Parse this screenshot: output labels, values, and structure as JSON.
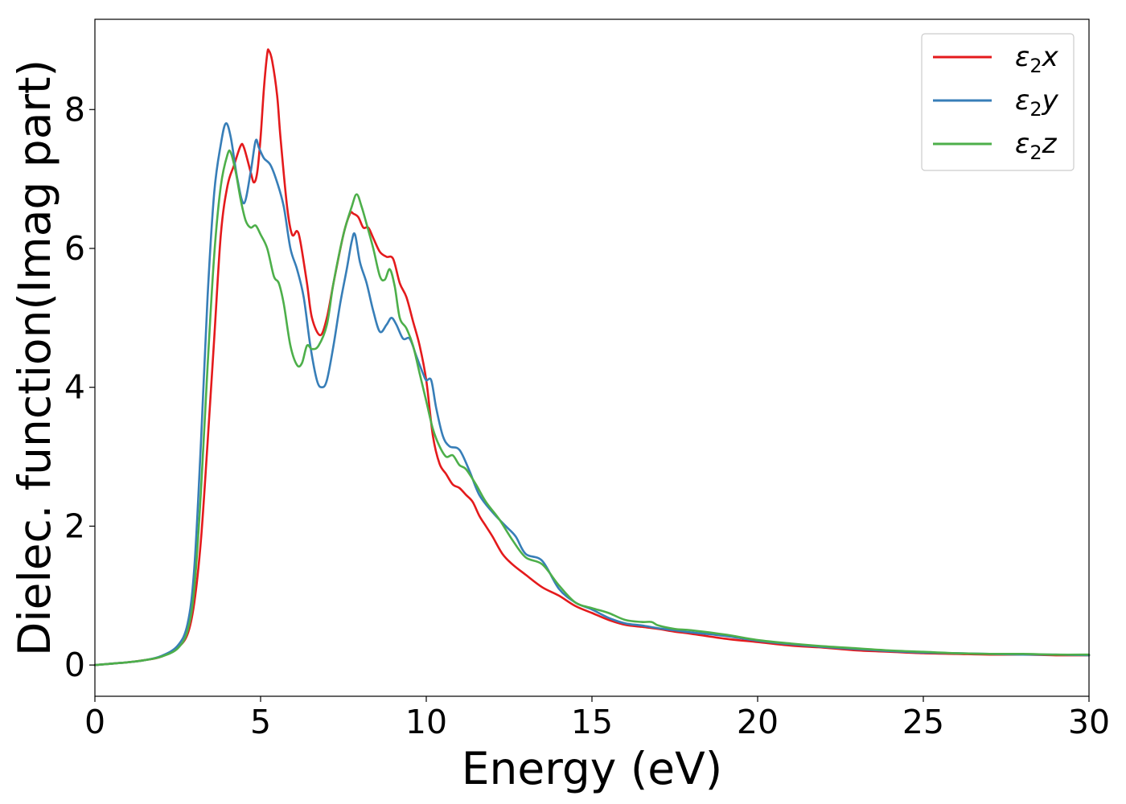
{
  "chart_data": {
    "type": "line",
    "title": "",
    "xlabel": "Energy (eV)",
    "ylabel": "Dielec. function(Imag part)",
    "xlim": [
      0,
      30
    ],
    "ylim": [
      -0.45,
      9.3
    ],
    "xticks": [
      0,
      5,
      10,
      15,
      20,
      25,
      30
    ],
    "xtick_labels": [
      "0",
      "5",
      "10",
      "15",
      "20",
      "25",
      "30"
    ],
    "yticks": [
      0,
      2,
      4,
      6,
      8
    ],
    "ytick_labels": [
      "0",
      "2",
      "4",
      "6",
      "8"
    ],
    "grid": false,
    "legend_position": "top-right",
    "series": [
      {
        "name": "ε2x",
        "legend_main": "ε",
        "legend_sub": "2",
        "legend_tail": "x",
        "color": "#e41a1c",
        "points": [
          [
            0,
            0
          ],
          [
            1,
            0.04
          ],
          [
            1.5,
            0.07
          ],
          [
            2,
            0.12
          ],
          [
            2.5,
            0.25
          ],
          [
            2.8,
            0.45
          ],
          [
            3,
            0.9
          ],
          [
            3.2,
            1.8
          ],
          [
            3.4,
            3.2
          ],
          [
            3.6,
            4.7
          ],
          [
            3.8,
            6.2
          ],
          [
            4,
            6.9
          ],
          [
            4.2,
            7.2
          ],
          [
            4.4,
            7.48
          ],
          [
            4.5,
            7.45
          ],
          [
            4.7,
            7.1
          ],
          [
            4.8,
            6.95
          ],
          [
            4.9,
            7.1
          ],
          [
            5,
            7.6
          ],
          [
            5.1,
            8.3
          ],
          [
            5.2,
            8.8
          ],
          [
            5.25,
            8.85
          ],
          [
            5.35,
            8.7
          ],
          [
            5.5,
            8.2
          ],
          [
            5.6,
            7.6
          ],
          [
            5.8,
            6.6
          ],
          [
            5.95,
            6.2
          ],
          [
            6.1,
            6.25
          ],
          [
            6.2,
            6.1
          ],
          [
            6.4,
            5.5
          ],
          [
            6.55,
            5
          ],
          [
            6.8,
            4.75
          ],
          [
            7,
            5
          ],
          [
            7.2,
            5.5
          ],
          [
            7.5,
            6.2
          ],
          [
            7.7,
            6.5
          ],
          [
            7.8,
            6.5
          ],
          [
            7.95,
            6.45
          ],
          [
            8.1,
            6.3
          ],
          [
            8.25,
            6.3
          ],
          [
            8.4,
            6.15
          ],
          [
            8.6,
            5.95
          ],
          [
            8.8,
            5.88
          ],
          [
            9,
            5.85
          ],
          [
            9.2,
            5.5
          ],
          [
            9.4,
            5.3
          ],
          [
            9.6,
            4.95
          ],
          [
            9.8,
            4.6
          ],
          [
            10,
            4.1
          ],
          [
            10.2,
            3.3
          ],
          [
            10.4,
            2.9
          ],
          [
            10.6,
            2.75
          ],
          [
            10.8,
            2.6
          ],
          [
            11,
            2.55
          ],
          [
            11.2,
            2.45
          ],
          [
            11.4,
            2.35
          ],
          [
            11.6,
            2.15
          ],
          [
            11.8,
            2
          ],
          [
            12,
            1.85
          ],
          [
            12.3,
            1.6
          ],
          [
            12.6,
            1.45
          ],
          [
            13,
            1.3
          ],
          [
            13.5,
            1.12
          ],
          [
            14,
            1
          ],
          [
            14.5,
            0.85
          ],
          [
            15,
            0.75
          ],
          [
            15.5,
            0.65
          ],
          [
            16,
            0.58
          ],
          [
            16.5,
            0.55
          ],
          [
            17,
            0.52
          ],
          [
            17.5,
            0.48
          ],
          [
            18,
            0.45
          ],
          [
            19,
            0.38
          ],
          [
            20,
            0.33
          ],
          [
            21,
            0.28
          ],
          [
            22,
            0.25
          ],
          [
            23,
            0.21
          ],
          [
            24,
            0.19
          ],
          [
            25,
            0.17
          ],
          [
            26,
            0.16
          ],
          [
            27,
            0.15
          ],
          [
            28,
            0.15
          ],
          [
            29,
            0.14
          ],
          [
            30,
            0.14
          ]
        ]
      },
      {
        "name": "ε2y",
        "legend_main": "ε",
        "legend_sub": "2",
        "legend_tail": "y",
        "color": "#377eb8",
        "points": [
          [
            0,
            0
          ],
          [
            1,
            0.04
          ],
          [
            1.5,
            0.07
          ],
          [
            2,
            0.13
          ],
          [
            2.5,
            0.28
          ],
          [
            2.8,
            0.6
          ],
          [
            3,
            1.4
          ],
          [
            3.2,
            3.2
          ],
          [
            3.4,
            5.3
          ],
          [
            3.6,
            6.8
          ],
          [
            3.8,
            7.5
          ],
          [
            3.95,
            7.8
          ],
          [
            4.1,
            7.6
          ],
          [
            4.3,
            7.0
          ],
          [
            4.5,
            6.65
          ],
          [
            4.7,
            7.1
          ],
          [
            4.85,
            7.55
          ],
          [
            4.95,
            7.45
          ],
          [
            5.1,
            7.3
          ],
          [
            5.3,
            7.2
          ],
          [
            5.5,
            6.95
          ],
          [
            5.7,
            6.6
          ],
          [
            5.9,
            6
          ],
          [
            6.1,
            5.7
          ],
          [
            6.3,
            5.3
          ],
          [
            6.5,
            4.6
          ],
          [
            6.7,
            4.1
          ],
          [
            6.85,
            4
          ],
          [
            7,
            4.1
          ],
          [
            7.2,
            4.6
          ],
          [
            7.4,
            5.2
          ],
          [
            7.6,
            5.7
          ],
          [
            7.75,
            6.1
          ],
          [
            7.85,
            6.2
          ],
          [
            8,
            5.8
          ],
          [
            8.2,
            5.5
          ],
          [
            8.4,
            5.1
          ],
          [
            8.6,
            4.8
          ],
          [
            8.8,
            4.9
          ],
          [
            8.95,
            5
          ],
          [
            9.1,
            4.9
          ],
          [
            9.3,
            4.7
          ],
          [
            9.5,
            4.7
          ],
          [
            9.7,
            4.45
          ],
          [
            9.9,
            4.2
          ],
          [
            10,
            4.1
          ],
          [
            10.15,
            4.1
          ],
          [
            10.3,
            3.7
          ],
          [
            10.5,
            3.3
          ],
          [
            10.7,
            3.15
          ],
          [
            11,
            3.1
          ],
          [
            11.3,
            2.8
          ],
          [
            11.6,
            2.45
          ],
          [
            12,
            2.2
          ],
          [
            12.4,
            2
          ],
          [
            12.7,
            1.85
          ],
          [
            13,
            1.6
          ],
          [
            13.5,
            1.5
          ],
          [
            14,
            1.1
          ],
          [
            14.5,
            0.9
          ],
          [
            15,
            0.8
          ],
          [
            15.5,
            0.68
          ],
          [
            16,
            0.6
          ],
          [
            16.5,
            0.57
          ],
          [
            17,
            0.53
          ],
          [
            17.5,
            0.5
          ],
          [
            18,
            0.47
          ],
          [
            19,
            0.42
          ],
          [
            20,
            0.35
          ],
          [
            21,
            0.3
          ],
          [
            22,
            0.26
          ],
          [
            23,
            0.23
          ],
          [
            24,
            0.2
          ],
          [
            25,
            0.18
          ],
          [
            26,
            0.17
          ],
          [
            27,
            0.16
          ],
          [
            28,
            0.15
          ],
          [
            29,
            0.15
          ],
          [
            30,
            0.14
          ]
        ]
      },
      {
        "name": "ε2z",
        "legend_main": "ε",
        "legend_sub": "2",
        "legend_tail": "z",
        "color": "#4daf4a",
        "points": [
          [
            0,
            0
          ],
          [
            1,
            0.04
          ],
          [
            1.5,
            0.07
          ],
          [
            2,
            0.12
          ],
          [
            2.5,
            0.24
          ],
          [
            2.8,
            0.5
          ],
          [
            3,
            1.1
          ],
          [
            3.2,
            2.5
          ],
          [
            3.4,
            4.3
          ],
          [
            3.6,
            5.9
          ],
          [
            3.8,
            6.9
          ],
          [
            4,
            7.35
          ],
          [
            4.1,
            7.38
          ],
          [
            4.25,
            7.1
          ],
          [
            4.4,
            6.7
          ],
          [
            4.55,
            6.4
          ],
          [
            4.7,
            6.3
          ],
          [
            4.85,
            6.33
          ],
          [
            5,
            6.2
          ],
          [
            5.2,
            6
          ],
          [
            5.4,
            5.6
          ],
          [
            5.55,
            5.5
          ],
          [
            5.7,
            5.2
          ],
          [
            5.9,
            4.6
          ],
          [
            6.1,
            4.32
          ],
          [
            6.25,
            4.35
          ],
          [
            6.4,
            4.6
          ],
          [
            6.55,
            4.55
          ],
          [
            6.75,
            4.6
          ],
          [
            7,
            4.9
          ],
          [
            7.2,
            5.5
          ],
          [
            7.5,
            6.2
          ],
          [
            7.75,
            6.6
          ],
          [
            7.9,
            6.78
          ],
          [
            8.05,
            6.6
          ],
          [
            8.2,
            6.35
          ],
          [
            8.4,
            6
          ],
          [
            8.6,
            5.6
          ],
          [
            8.75,
            5.55
          ],
          [
            8.9,
            5.7
          ],
          [
            9.05,
            5.45
          ],
          [
            9.2,
            5
          ],
          [
            9.4,
            4.85
          ],
          [
            9.6,
            4.6
          ],
          [
            9.8,
            4.2
          ],
          [
            10,
            3.8
          ],
          [
            10.2,
            3.4
          ],
          [
            10.4,
            3.15
          ],
          [
            10.6,
            3
          ],
          [
            10.8,
            3.02
          ],
          [
            11,
            2.88
          ],
          [
            11.2,
            2.82
          ],
          [
            11.5,
            2.6
          ],
          [
            11.8,
            2.35
          ],
          [
            12.2,
            2.1
          ],
          [
            12.6,
            1.8
          ],
          [
            13,
            1.55
          ],
          [
            13.5,
            1.45
          ],
          [
            14,
            1.15
          ],
          [
            14.5,
            0.9
          ],
          [
            15,
            0.82
          ],
          [
            15.5,
            0.75
          ],
          [
            16,
            0.65
          ],
          [
            16.5,
            0.62
          ],
          [
            16.8,
            0.62
          ],
          [
            17,
            0.57
          ],
          [
            17.5,
            0.52
          ],
          [
            18,
            0.5
          ],
          [
            19,
            0.44
          ],
          [
            20,
            0.36
          ],
          [
            21,
            0.31
          ],
          [
            22,
            0.27
          ],
          [
            23,
            0.24
          ],
          [
            24,
            0.21
          ],
          [
            25,
            0.19
          ],
          [
            26,
            0.17
          ],
          [
            27,
            0.16
          ],
          [
            28,
            0.16
          ],
          [
            29,
            0.15
          ],
          [
            30,
            0.15
          ]
        ]
      }
    ]
  }
}
